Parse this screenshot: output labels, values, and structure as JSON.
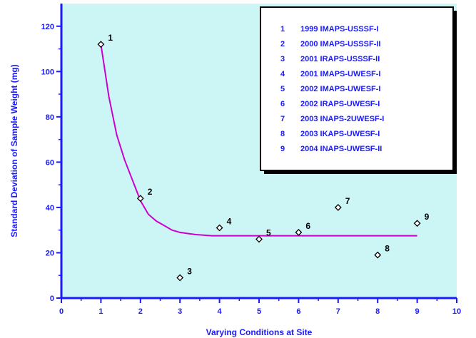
{
  "colors": {
    "plot_background": "#ccf5f5",
    "axis": "#1a1aff",
    "curve": "#cc00cc",
    "marker": "#000000",
    "legend_text": "#1a1aff",
    "legend_border": "#000000"
  },
  "chart_data": {
    "type": "scatter",
    "title": "",
    "xlabel": "Varying Conditions at Site",
    "ylabel": "Standard Deviation of Sample Weight (mg)",
    "xlim": [
      0,
      10
    ],
    "ylim": [
      0,
      130
    ],
    "x_ticks": [
      0,
      1,
      2,
      3,
      4,
      5,
      6,
      7,
      8,
      9,
      10
    ],
    "x_tick_labels": [
      "0",
      "1",
      "2",
      "3",
      "4",
      "5",
      "6",
      "7",
      "8",
      "9",
      "10"
    ],
    "y_ticks": [
      0,
      20,
      40,
      60,
      80,
      100,
      120
    ],
    "y_tick_labels": [
      "0",
      "20",
      "40",
      "60",
      "80",
      "100",
      "120"
    ],
    "grid": false,
    "legend_position": "top-right",
    "points": [
      {
        "label": "1",
        "x": 1,
        "y": 112
      },
      {
        "label": "2",
        "x": 2,
        "y": 44
      },
      {
        "label": "3",
        "x": 3,
        "y": 9
      },
      {
        "label": "4",
        "x": 4,
        "y": 31
      },
      {
        "label": "5",
        "x": 5,
        "y": 26
      },
      {
        "label": "6",
        "x": 6,
        "y": 29
      },
      {
        "label": "7",
        "x": 7,
        "y": 40
      },
      {
        "label": "8",
        "x": 8,
        "y": 19
      },
      {
        "label": "9",
        "x": 9,
        "y": 33
      }
    ],
    "fit_curve": {
      "x": [
        1.0,
        1.2,
        1.4,
        1.6,
        1.8,
        2.0,
        2.2,
        2.4,
        2.6,
        2.8,
        3.0,
        3.2,
        3.4,
        3.6,
        3.8,
        4.0,
        5.0,
        6.0,
        7.0,
        8.0,
        9.0
      ],
      "y": [
        112,
        89,
        72,
        61,
        52,
        43,
        37,
        34,
        32,
        30,
        29,
        28.5,
        28,
        27.8,
        27.5,
        27.5,
        27.5,
        27.5,
        27.5,
        27.5,
        27.5
      ]
    },
    "legend": [
      {
        "key": "1",
        "text": "1999 IMAPS-USSSF-I"
      },
      {
        "key": "2",
        "text": "2000 IMAPS-USSSF-II"
      },
      {
        "key": "3",
        "text": "2001 IRAPS-USSSF-II"
      },
      {
        "key": "4",
        "text": "2001 IMAPS-UWESF-I"
      },
      {
        "key": "5",
        "text": "2002 IMAPS-UWESF-I"
      },
      {
        "key": "6",
        "text": "2002 IRAPS-UWESF-I"
      },
      {
        "key": "7",
        "text": "2003 INAPS-2UWESF-I"
      },
      {
        "key": "8",
        "text": "2003 IKAPS-UWESF-I"
      },
      {
        "key": "9",
        "text": "2004 INAPS-UWESF-II"
      }
    ]
  }
}
